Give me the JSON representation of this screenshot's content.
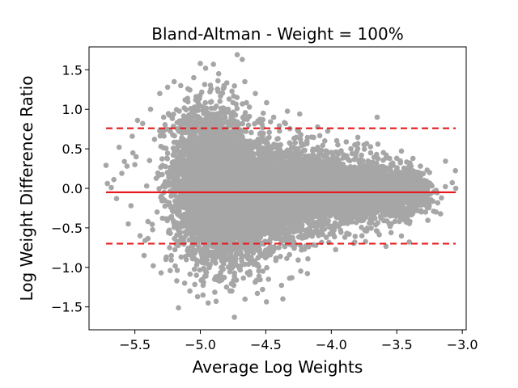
{
  "chart_data": {
    "type": "scatter",
    "title": "Bland-Altman - Weight = 100%",
    "xlabel": "Average Log Weights",
    "ylabel": "Log Weight Difference Ratio",
    "xlim": [
      -5.85,
      -2.97
    ],
    "ylim": [
      -1.79,
      1.79
    ],
    "x_ticks": [
      -5.5,
      -5.0,
      -4.5,
      -4.0,
      -3.5,
      -3.0
    ],
    "x_tick_labels": [
      "−5.5",
      "−5.0",
      "−4.5",
      "−4.0",
      "−3.5",
      "−3.0"
    ],
    "y_ticks": [
      -1.5,
      -1.0,
      -0.5,
      0.0,
      0.5,
      1.0,
      1.5
    ],
    "y_tick_labels": [
      "−1.5",
      "−1.0",
      "−0.5",
      "0.0",
      "0.5",
      "1.0",
      "1.5"
    ],
    "grid": false,
    "point_color": "#a6a6a6",
    "line_color": "#e41a1c",
    "mean_difference": -0.05,
    "upper_limit_of_agreement": 0.76,
    "lower_limit_of_agreement": -0.7,
    "reference_lines_x_range": [
      -5.72,
      -3.05
    ],
    "series": [
      {
        "points": [
          [
            -5.72,
            0.29
          ],
          [
            -5.71,
            0.06
          ],
          [
            -5.68,
            0.01
          ],
          [
            -5.66,
            0.11
          ],
          [
            -5.64,
            -0.13
          ],
          [
            -5.62,
            0.52
          ],
          [
            -5.6,
            0.19
          ],
          [
            -5.58,
            0.34
          ],
          [
            -5.56,
            0.28
          ],
          [
            -5.55,
            -0.45
          ],
          [
            -5.53,
            -0.22
          ],
          [
            -5.52,
            0.66
          ],
          [
            -5.5,
            0.3
          ],
          [
            -5.49,
            0.4
          ],
          [
            -5.48,
            0.86
          ],
          [
            -5.46,
            -0.6
          ],
          [
            -5.44,
            0.82
          ],
          [
            -5.43,
            -0.85
          ],
          [
            -5.41,
            0.03
          ],
          [
            -5.4,
            -0.42
          ],
          [
            -5.38,
            1.0
          ],
          [
            -5.36,
            -0.98
          ],
          [
            -5.35,
            0.62
          ],
          [
            -5.33,
            -0.3
          ],
          [
            -5.31,
            1.2
          ],
          [
            -5.3,
            -1.07
          ],
          [
            -5.28,
            0.9
          ],
          [
            -5.26,
            -0.87
          ],
          [
            -5.25,
            1.28
          ],
          [
            -5.23,
            -1.04
          ],
          [
            -5.2,
            1.35
          ],
          [
            -5.18,
            -1.17
          ],
          [
            -5.15,
            1.3
          ],
          [
            -5.12,
            -1.2
          ],
          [
            -5.1,
            1.12
          ],
          [
            -5.08,
            -1.3
          ],
          [
            -5.05,
            1.4
          ],
          [
            -5.03,
            -1.1
          ],
          [
            -5.0,
            1.58
          ],
          [
            -4.98,
            -1.35
          ],
          [
            -4.96,
            1.52
          ],
          [
            -4.94,
            -1.45
          ],
          [
            -4.92,
            1.25
          ],
          [
            -4.9,
            1.57
          ],
          [
            -4.88,
            -1.43
          ],
          [
            -4.86,
            1.45
          ],
          [
            -4.84,
            -1.0
          ],
          [
            -4.82,
            1.3
          ],
          [
            -4.8,
            -1.25
          ],
          [
            -4.78,
            1.13
          ],
          [
            -4.76,
            -1.3
          ],
          [
            -4.74,
            -1.63
          ],
          [
            -4.72,
            1.15
          ],
          [
            -4.7,
            -1.02
          ],
          [
            -4.68,
            1.63
          ],
          [
            -4.66,
            1.35
          ],
          [
            -4.64,
            -1.07
          ],
          [
            -4.62,
            -0.92
          ],
          [
            -4.58,
            1.2
          ],
          [
            -4.55,
            -0.8
          ],
          [
            -4.52,
            0.95
          ],
          [
            -4.48,
            -1.15
          ],
          [
            -4.44,
            0.9
          ],
          [
            -4.4,
            -0.75
          ],
          [
            -4.35,
            0.82
          ],
          [
            -4.3,
            -0.72
          ],
          [
            -4.25,
            0.72
          ],
          [
            -4.2,
            -0.62
          ],
          [
            -4.15,
            0.65
          ],
          [
            -4.1,
            -0.55
          ],
          [
            -4.05,
            0.6
          ],
          [
            -4.0,
            -0.48
          ],
          [
            -3.95,
            0.55
          ],
          [
            -3.9,
            -0.42
          ],
          [
            -3.85,
            0.5
          ],
          [
            -3.8,
            -0.4
          ],
          [
            -3.75,
            0.55
          ],
          [
            -3.7,
            0.45
          ],
          [
            -3.65,
            0.9
          ],
          [
            -3.62,
            -0.38
          ],
          [
            -3.58,
            0.42
          ],
          [
            -3.55,
            -0.35
          ],
          [
            -3.5,
            0.38
          ],
          [
            -3.45,
            -0.3
          ],
          [
            -3.4,
            0.32
          ],
          [
            -3.36,
            -0.25
          ],
          [
            -3.32,
            0.28
          ],
          [
            -3.28,
            -0.3
          ],
          [
            -3.25,
            0.2
          ],
          [
            -3.2,
            -0.3
          ],
          [
            -3.05,
            0.0
          ]
        ],
        "clusters": [
          {
            "cx": -4.95,
            "cy": 0.25,
            "sx": 0.14,
            "sy": 0.42,
            "n": 1700
          },
          {
            "cx": -4.9,
            "cy": -0.3,
            "sx": 0.12,
            "sy": 0.35,
            "n": 900
          },
          {
            "cx": -4.7,
            "cy": -0.1,
            "sx": 0.2,
            "sy": 0.38,
            "n": 1900
          },
          {
            "cx": -4.4,
            "cy": -0.05,
            "sx": 0.22,
            "sy": 0.3,
            "n": 1900
          },
          {
            "cx": -4.0,
            "cy": -0.05,
            "sx": 0.22,
            "sy": 0.22,
            "n": 1500
          },
          {
            "cx": -3.6,
            "cy": -0.05,
            "sx": 0.17,
            "sy": 0.16,
            "n": 1000
          },
          {
            "cx": -3.4,
            "cy": -0.05,
            "sx": 0.07,
            "sy": 0.12,
            "n": 300
          }
        ]
      }
    ]
  }
}
